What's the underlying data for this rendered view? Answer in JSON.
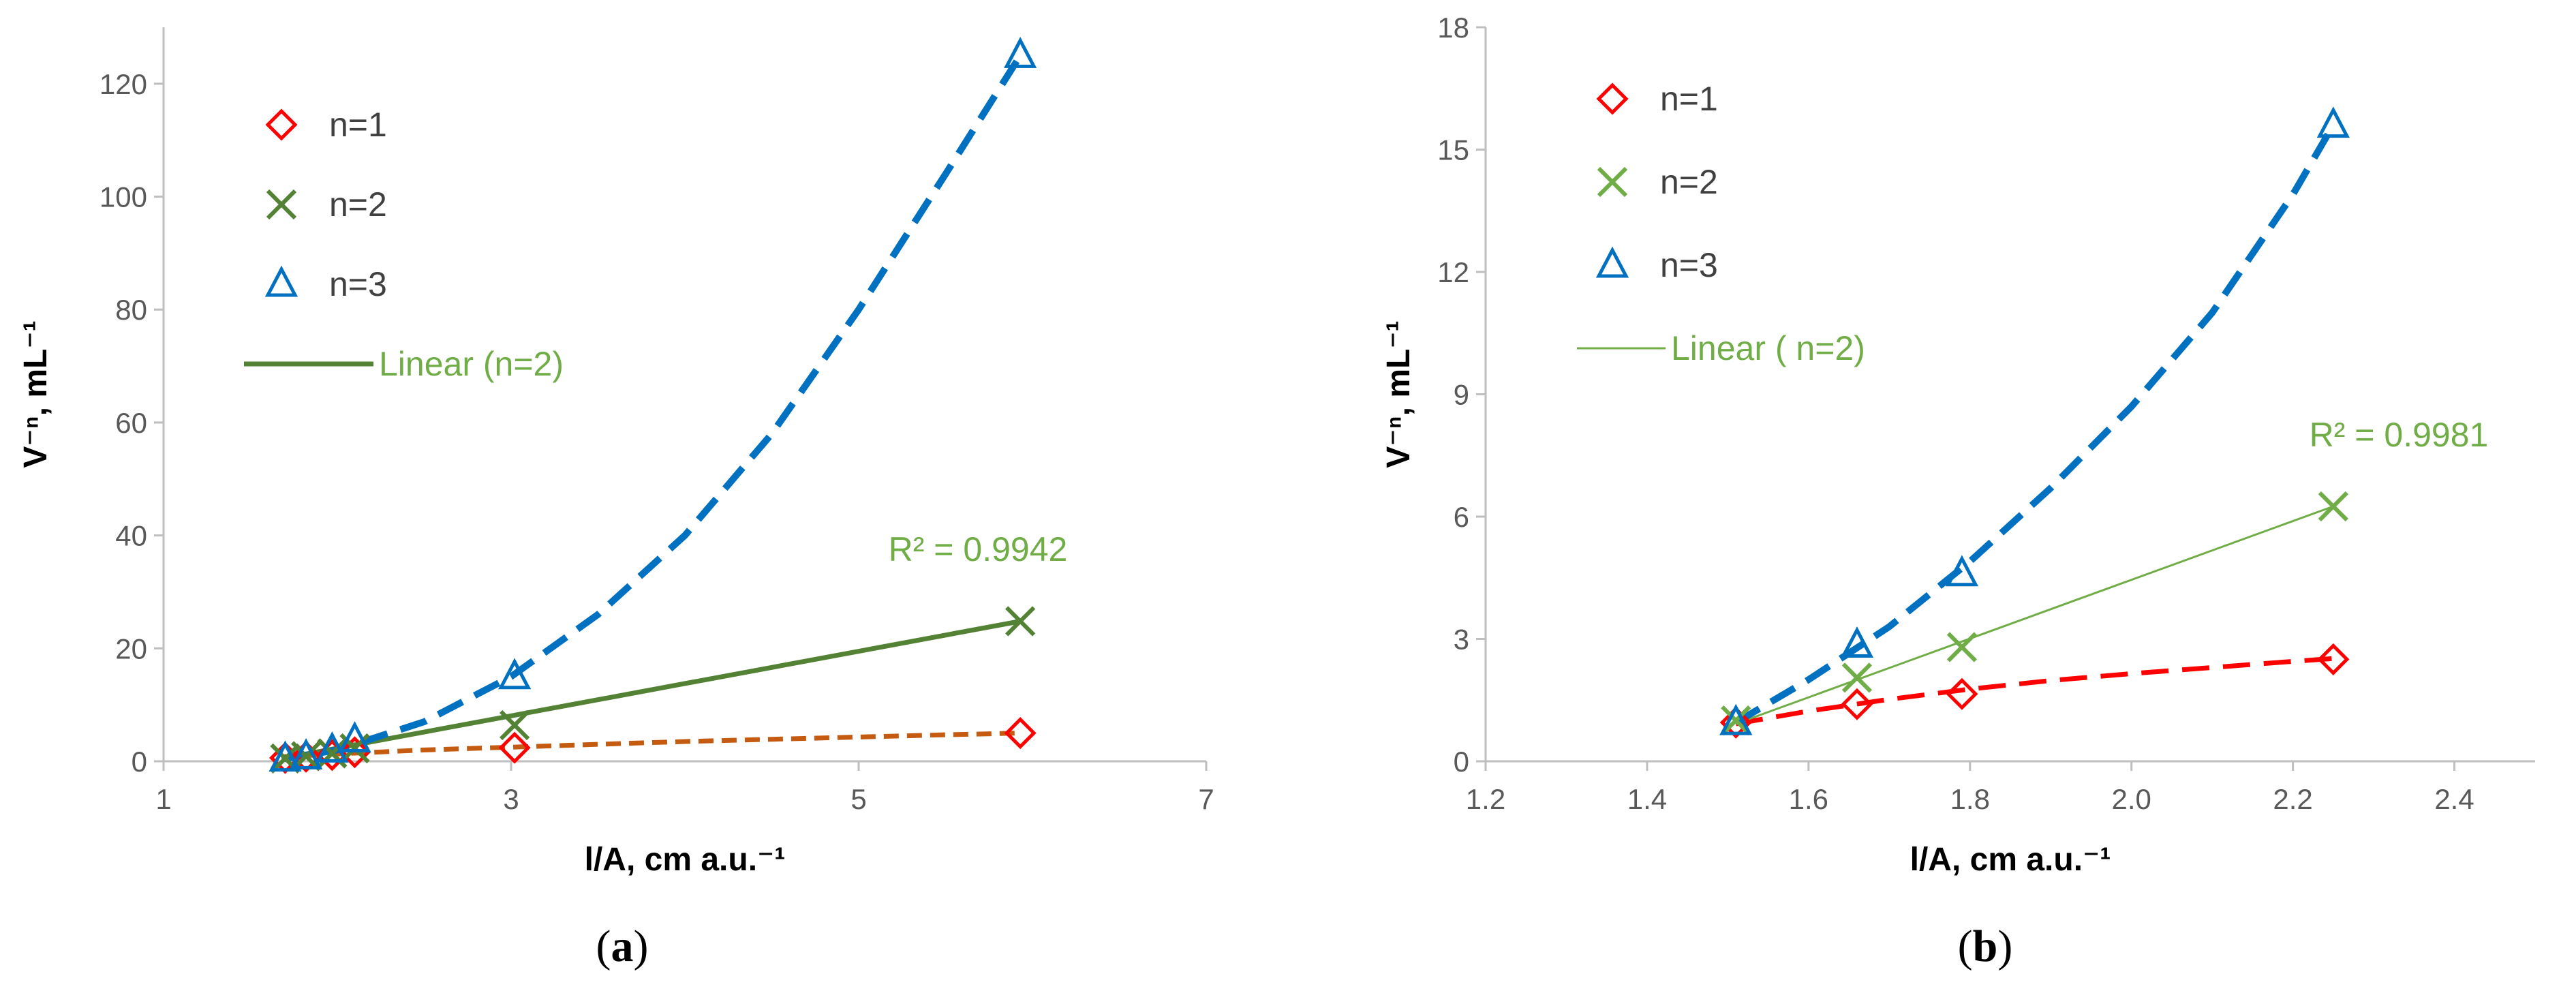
{
  "colors": {
    "n1": "#FF0000",
    "n1_fit_a": "#C55A11",
    "n2": "#548235",
    "n2_b": "#70AD47",
    "n3": "#0070C0",
    "axis": "#BFBFBF",
    "tick_text": "#595959",
    "r2_text": "#70AD47"
  },
  "chart_data": [
    {
      "type": "scatter",
      "panel_label": "a",
      "xlabel": "l/A, cm a.u.⁻¹",
      "ylabel": "V⁻ⁿ, mL⁻¹",
      "xlim": [
        1,
        7
      ],
      "ylim": [
        0,
        130
      ],
      "xticks": [
        1,
        3,
        5,
        7
      ],
      "yticks": [
        0,
        20,
        40,
        60,
        80,
        100,
        120
      ],
      "grid": false,
      "legend_position": "top-left",
      "series": [
        {
          "name": "n=1",
          "marker": "diamond",
          "color": "#FF0000",
          "x": [
            1.7,
            1.82,
            1.97,
            2.1,
            3.02,
            5.93
          ],
          "y": [
            0.6,
            0.8,
            1.1,
            1.6,
            2.4,
            5.0
          ]
        },
        {
          "name": "n=2",
          "marker": "x",
          "color": "#548235",
          "x": [
            1.7,
            1.82,
            1.97,
            2.1,
            3.02,
            5.93
          ],
          "y": [
            0.5,
            0.9,
            1.4,
            2.3,
            6.4,
            24.8
          ]
        },
        {
          "name": "n=3",
          "marker": "triangle",
          "color": "#0070C0",
          "x": [
            1.7,
            1.82,
            1.97,
            2.1,
            3.02,
            5.93
          ],
          "y": [
            0.4,
            0.8,
            2.0,
            3.8,
            15.0,
            125.0
          ]
        }
      ],
      "fits": [
        {
          "series": "n=1",
          "style": "dashed",
          "color": "#C55A11",
          "x": [
            1.68,
            2.0,
            2.5,
            3.0,
            3.5,
            4.0,
            4.5,
            5.0,
            5.5,
            5.93
          ],
          "y": [
            0.8,
            1.3,
            2.0,
            2.5,
            3.0,
            3.5,
            3.9,
            4.3,
            4.7,
            5.0
          ]
        },
        {
          "series": "n=2",
          "name": "Linear (n=2)",
          "style": "solid",
          "color": "#548235",
          "x": [
            1.68,
            5.93
          ],
          "y": [
            0.5,
            24.8
          ],
          "r2": "R² = 0.9942"
        },
        {
          "series": "n=3",
          "style": "dashed",
          "color": "#0070C0",
          "x": [
            1.68,
            2.0,
            2.5,
            3.0,
            3.5,
            4.0,
            4.5,
            5.0,
            5.5,
            5.93
          ],
          "y": [
            0.4,
            2.0,
            7.0,
            15.0,
            26.0,
            40.0,
            58.0,
            80.0,
            104.0,
            125.0
          ]
        }
      ]
    },
    {
      "type": "scatter",
      "panel_label": "b",
      "xlabel": "l/A, cm a.u.⁻¹",
      "ylabel": "V⁻ⁿ, mL⁻¹",
      "xlim": [
        1.2,
        2.5
      ],
      "ylim": [
        0,
        18
      ],
      "xticks": [
        1.2,
        1.4,
        1.6,
        1.8,
        2.0,
        2.2,
        2.4
      ],
      "yticks": [
        0,
        3,
        6,
        9,
        12,
        15,
        18
      ],
      "grid": false,
      "legend_position": "top-left",
      "series": [
        {
          "name": "n=1",
          "marker": "diamond",
          "color": "#FF0000",
          "x": [
            1.51,
            1.66,
            1.79,
            2.25
          ],
          "y": [
            0.95,
            1.4,
            1.65,
            2.5
          ]
        },
        {
          "name": "n=2",
          "marker": "x",
          "color": "#70AD47",
          "x": [
            1.51,
            1.66,
            1.79,
            2.25
          ],
          "y": [
            1.0,
            2.05,
            2.8,
            6.25
          ]
        },
        {
          "name": "n=3",
          "marker": "triangle",
          "color": "#0070C0",
          "x": [
            1.51,
            1.66,
            1.79,
            2.25
          ],
          "y": [
            0.95,
            2.85,
            4.6,
            15.6
          ]
        }
      ],
      "fits": [
        {
          "series": "n=1",
          "style": "dashed",
          "color": "#FF0000",
          "x": [
            1.51,
            1.6,
            1.7,
            1.8,
            1.9,
            2.0,
            2.1,
            2.2,
            2.25
          ],
          "y": [
            0.92,
            1.23,
            1.52,
            1.77,
            1.98,
            2.15,
            2.3,
            2.45,
            2.52
          ]
        },
        {
          "series": "n=2",
          "name": "Linear ( n=2)",
          "style": "solid",
          "color": "#70AD47",
          "x": [
            1.51,
            2.25
          ],
          "y": [
            0.92,
            6.25
          ],
          "r2": "R² = 0.9981"
        },
        {
          "series": "n=3",
          "style": "dashed",
          "color": "#0070C0",
          "x": [
            1.51,
            1.6,
            1.7,
            1.8,
            1.9,
            2.0,
            2.1,
            2.2,
            2.25
          ],
          "y": [
            0.95,
            2.0,
            3.3,
            4.9,
            6.7,
            8.7,
            11.0,
            13.9,
            15.6
          ]
        }
      ]
    }
  ]
}
